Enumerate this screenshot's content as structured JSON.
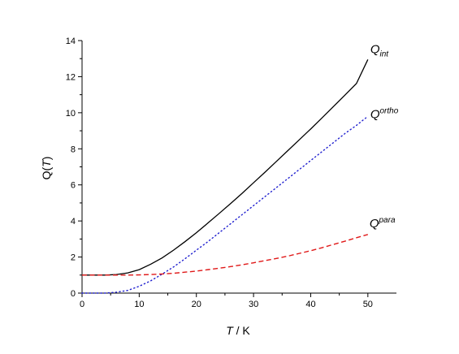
{
  "chart_data": {
    "type": "line",
    "xlabel": {
      "var": "T",
      "unit": " / K"
    },
    "ylabel": {
      "pre": "Q(",
      "var": "T",
      "post": ")"
    },
    "xlim": [
      0,
      55
    ],
    "ylim": [
      0,
      14
    ],
    "xticks": [
      0,
      10,
      20,
      30,
      40,
      50
    ],
    "yticks": [
      0,
      2,
      4,
      6,
      8,
      10,
      12,
      14
    ],
    "grid": false,
    "legend": "none",
    "series": [
      {
        "name": "Q_int",
        "label_base": "Q",
        "label_sup": "",
        "label_sub": "int",
        "color": "#000000",
        "style": "solid",
        "x": [
          0,
          2,
          4,
          6,
          8,
          10,
          12,
          14,
          16,
          18,
          20,
          22,
          24,
          26,
          28,
          30,
          32,
          34,
          36,
          38,
          40,
          42,
          44,
          46,
          48,
          50
        ],
        "y": [
          1.0,
          1.0,
          1.0,
          1.03,
          1.12,
          1.3,
          1.6,
          1.95,
          2.38,
          2.85,
          3.35,
          3.88,
          4.42,
          4.97,
          5.53,
          6.12,
          6.7,
          7.3,
          7.9,
          8.5,
          9.1,
          9.72,
          10.35,
          10.98,
          11.62,
          12.95
        ]
      },
      {
        "name": "Q_ortho",
        "label_base": "Q",
        "label_sup": "ortho",
        "label_sub": "",
        "color": "#1f1fcf",
        "style": "dotted",
        "x": [
          0,
          2,
          4,
          6,
          8,
          10,
          12,
          14,
          16,
          18,
          20,
          22,
          24,
          26,
          28,
          30,
          32,
          34,
          36,
          38,
          40,
          42,
          44,
          46,
          48,
          50
        ],
        "y": [
          0.0,
          0.0,
          0.0,
          0.05,
          0.15,
          0.38,
          0.68,
          1.05,
          1.45,
          1.9,
          2.38,
          2.85,
          3.35,
          3.85,
          4.35,
          4.85,
          5.35,
          5.85,
          6.35,
          6.85,
          7.35,
          7.85,
          8.35,
          8.85,
          9.3,
          9.8
        ]
      },
      {
        "name": "Q_para",
        "label_base": "Q",
        "label_sup": "para",
        "label_sub": "",
        "color": "#e01818",
        "style": "dashed",
        "x": [
          0,
          2,
          4,
          6,
          8,
          10,
          12,
          14,
          16,
          18,
          20,
          22,
          24,
          26,
          28,
          30,
          32,
          34,
          36,
          38,
          40,
          42,
          44,
          46,
          48,
          50
        ],
        "y": [
          1.0,
          1.0,
          1.0,
          1.0,
          1.0,
          1.01,
          1.03,
          1.06,
          1.1,
          1.16,
          1.22,
          1.3,
          1.38,
          1.47,
          1.57,
          1.68,
          1.8,
          1.92,
          2.05,
          2.2,
          2.35,
          2.52,
          2.7,
          2.88,
          3.07,
          3.25
        ]
      }
    ]
  }
}
